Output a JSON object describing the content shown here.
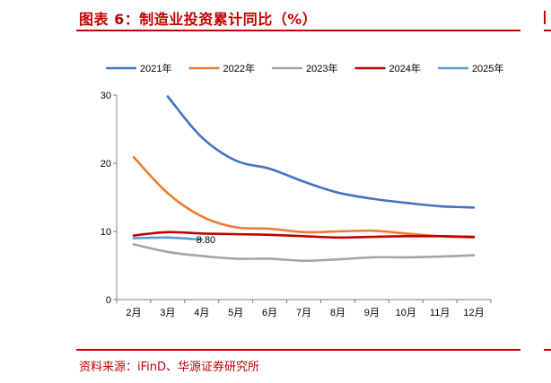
{
  "figure": {
    "title": "图表 6：制造业投资累计同比（%）",
    "source": "资料来源：iFinD、华源证券研究所"
  },
  "chart_data": {
    "type": "line",
    "categories": [
      "2月",
      "3月",
      "4月",
      "5月",
      "6月",
      "7月",
      "8月",
      "9月",
      "10月",
      "11月",
      "12月"
    ],
    "ylim": [
      0,
      30
    ],
    "yticks": [
      "0",
      "10",
      "20",
      "30"
    ],
    "grid": false,
    "legend": "top",
    "series": [
      {
        "name": "2021年",
        "color": "#4472c4",
        "values": [
          null,
          29.8,
          23.8,
          20.4,
          19.2,
          17.3,
          15.7,
          14.8,
          14.2,
          13.7,
          13.5
        ]
      },
      {
        "name": "2022年",
        "color": "#ed7d31",
        "values": [
          20.9,
          15.6,
          12.2,
          10.6,
          10.4,
          9.9,
          10.0,
          10.1,
          9.7,
          9.3,
          9.1
        ]
      },
      {
        "name": "2023年",
        "color": "#a5a5a5",
        "values": [
          8.1,
          7.0,
          6.4,
          6.0,
          6.0,
          5.7,
          5.9,
          6.2,
          6.2,
          6.3,
          6.5
        ]
      },
      {
        "name": "2024年",
        "color": "#c00000",
        "values": [
          9.4,
          9.9,
          9.7,
          9.6,
          9.5,
          9.3,
          9.1,
          9.2,
          9.3,
          9.3,
          9.2
        ]
      },
      {
        "name": "2025年",
        "color": "#5b9bd5",
        "values": [
          9.0,
          9.1,
          8.8,
          null,
          null,
          null,
          null,
          null,
          null,
          null,
          null
        ]
      }
    ],
    "annotations": [
      {
        "text": "8.80",
        "series": "2025年",
        "category": "4月",
        "value": 8.8
      }
    ]
  }
}
